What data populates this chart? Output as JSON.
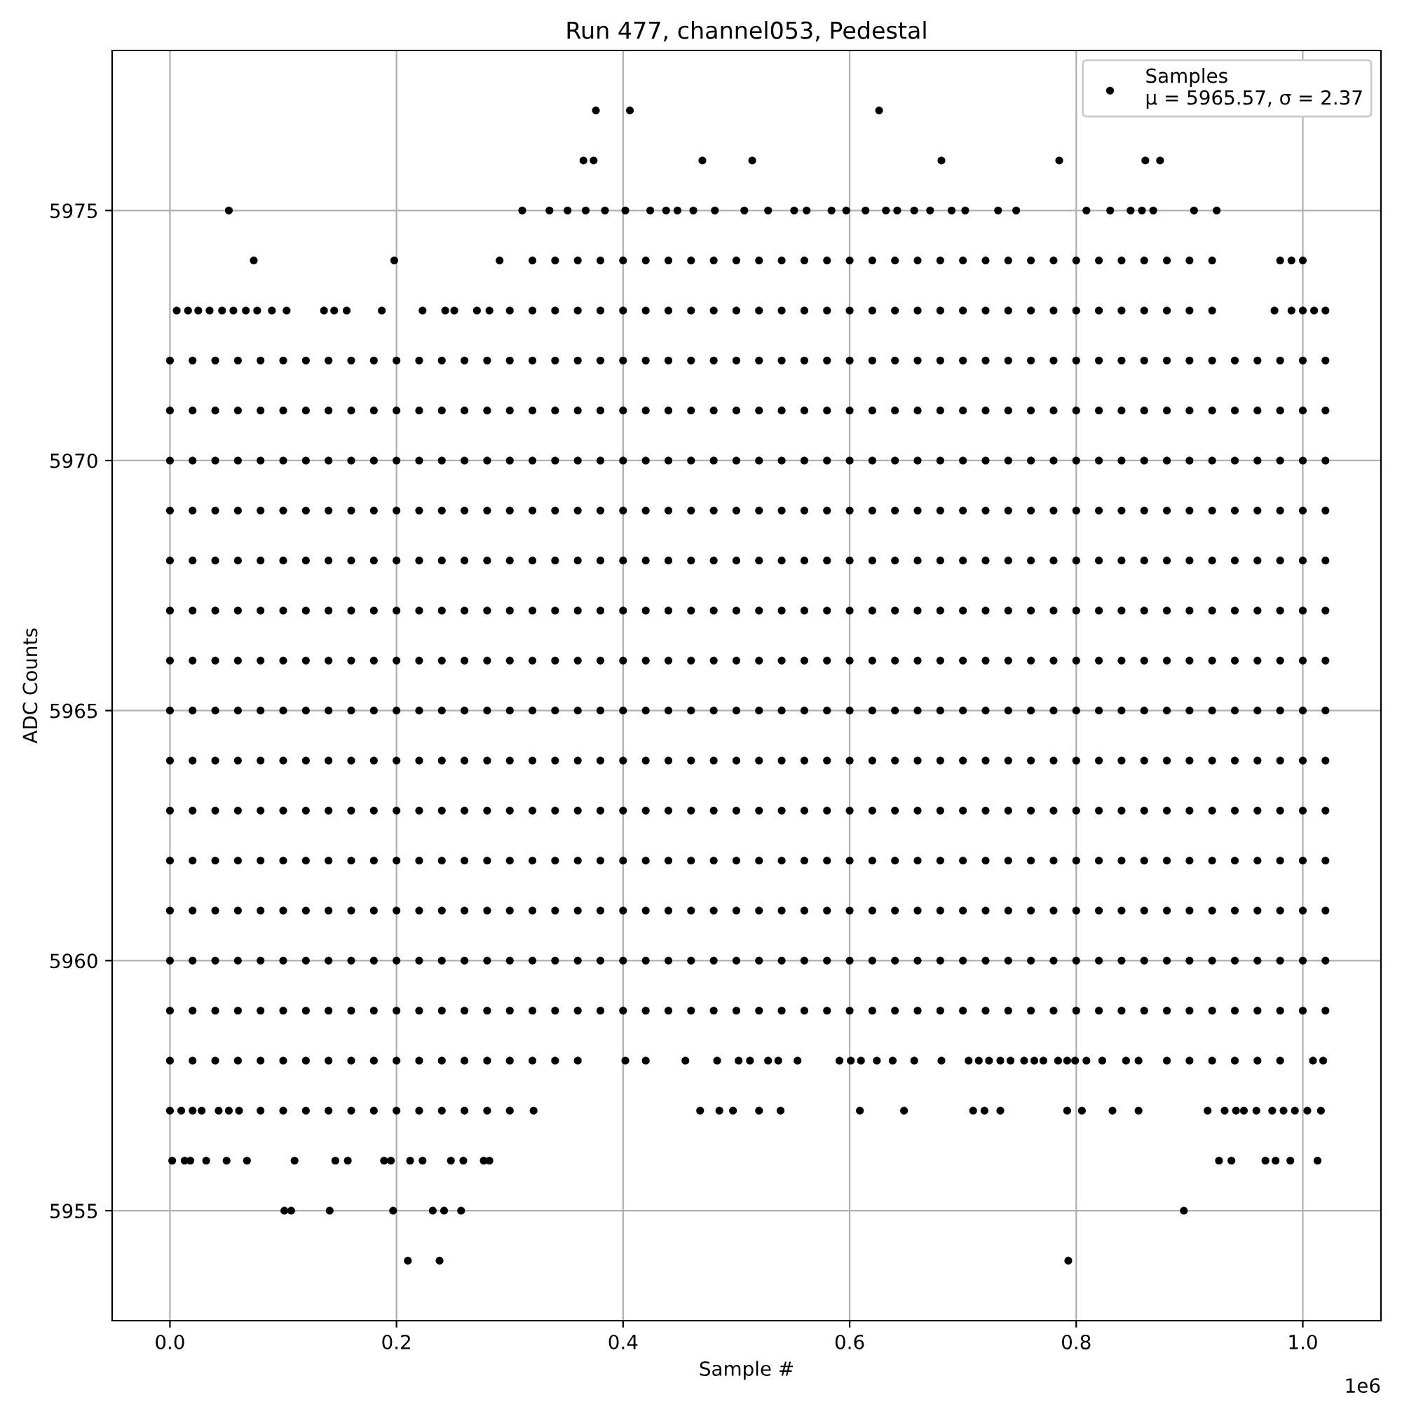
{
  "chart_data": {
    "type": "scatter",
    "title": "Run 477, channel053, Pedestal",
    "xlabel": "Sample #",
    "ylabel": "ADC Counts",
    "xlim": [
      -0.051,
      1.069
    ],
    "ylim": [
      5952.8,
      5978.2
    ],
    "xticks": [
      {
        "value": 0,
        "label": "0.0"
      },
      {
        "value": 0.2,
        "label": "0.2"
      },
      {
        "value": 0.4,
        "label": "0.4"
      },
      {
        "value": 0.6,
        "label": "0.6"
      },
      {
        "value": 0.8,
        "label": "0.8"
      },
      {
        "value": 1,
        "label": "1.0"
      }
    ],
    "yticks": [
      5955,
      5960,
      5965,
      5970,
      5975
    ],
    "annotations": [
      "1e6"
    ],
    "grid": true,
    "legend": "top right",
    "marker": "circle",
    "series": [
      {
        "name": "Samples\nμ = 5965.57, σ = 2.37",
        "color": "#000000",
        "x": [
          0.376,
          0.406,
          0.626
        ],
        "values": [
          5977,
          5977,
          5977
        ]
      },
      {
        "color": "#000000",
        "x": [
          0.365,
          0.374,
          0.47,
          0.514,
          0.681,
          0.785,
          0.861,
          0.874
        ],
        "values": [
          5976,
          5976,
          5976,
          5976,
          5976,
          5976,
          5976,
          5976
        ]
      },
      {
        "color": "#000000",
        "x": [
          0.052,
          0.311,
          0.335,
          0.351,
          0.367,
          0.384,
          0.402,
          0.424,
          0.438,
          0.448,
          0.462,
          0.481,
          0.507,
          0.528,
          0.551,
          0.562,
          0.584,
          0.597,
          0.614,
          0.632,
          0.642,
          0.657,
          0.671,
          0.69,
          0.702,
          0.731,
          0.747,
          0.809,
          0.83,
          0.848,
          0.858,
          0.868,
          0.904,
          0.924
        ],
        "values": [
          5975,
          5975,
          5975,
          5975,
          5975,
          5975,
          5975,
          5975,
          5975,
          5975,
          5975,
          5975,
          5975,
          5975,
          5975,
          5975,
          5975,
          5975,
          5975,
          5975,
          5975,
          5975,
          5975,
          5975,
          5975,
          5975,
          5975,
          5975,
          5975,
          5975,
          5975,
          5975,
          5975,
          5975
        ]
      },
      {
        "color": "#000000",
        "x": [
          0.074,
          0.198,
          0.291,
          0.32,
          0.34,
          0.36,
          0.38,
          0.4,
          0.42,
          0.44,
          0.46,
          0.48,
          0.5,
          0.52,
          0.54,
          0.56,
          0.58,
          0.6,
          0.62,
          0.64,
          0.66,
          0.68,
          0.7,
          0.72,
          0.74,
          0.76,
          0.78,
          0.8,
          0.82,
          0.84,
          0.86,
          0.88,
          0.9,
          0.92,
          0.98,
          0.99,
          1.0
        ],
        "values": [
          5974,
          5974,
          5974,
          5974,
          5974,
          5974,
          5974,
          5974,
          5974,
          5974,
          5974,
          5974,
          5974,
          5974,
          5974,
          5974,
          5974,
          5974,
          5974,
          5974,
          5974,
          5974,
          5974,
          5974,
          5974,
          5974,
          5974,
          5974,
          5974,
          5974,
          5974,
          5974,
          5974,
          5974,
          5974,
          5974,
          5974
        ]
      },
      {
        "color": "#000000",
        "x": [
          0.006,
          0.016,
          0.025,
          0.035,
          0.046,
          0.056,
          0.067,
          0.077,
          0.09,
          0.103,
          0.136,
          0.145,
          0.156,
          0.187,
          0.223,
          0.243,
          0.251,
          0.271,
          0.282,
          0.3,
          0.32,
          0.34,
          0.36,
          0.38,
          0.4,
          0.42,
          0.44,
          0.46,
          0.48,
          0.5,
          0.52,
          0.54,
          0.56,
          0.58,
          0.6,
          0.62,
          0.64,
          0.66,
          0.68,
          0.7,
          0.72,
          0.74,
          0.76,
          0.78,
          0.8,
          0.82,
          0.84,
          0.86,
          0.88,
          0.9,
          0.92,
          0.975,
          0.99,
          1.0,
          1.01,
          1.02
        ],
        "values": [
          5973,
          5973,
          5973,
          5973,
          5973,
          5973,
          5973,
          5973,
          5973,
          5973,
          5973,
          5973,
          5973,
          5973,
          5973,
          5973,
          5973,
          5973,
          5973,
          5973,
          5973,
          5973,
          5973,
          5973,
          5973,
          5973,
          5973,
          5973,
          5973,
          5973,
          5973,
          5973,
          5973,
          5973,
          5973,
          5973,
          5973,
          5973,
          5973,
          5973,
          5973,
          5973,
          5973,
          5973,
          5973,
          5973,
          5973,
          5973,
          5973,
          5973,
          5973,
          5973,
          5973,
          5973,
          5973,
          5973
        ]
      },
      {
        "color": "#000000",
        "x": [
          0,
          0.02,
          0.04,
          0.06,
          0.08,
          0.1,
          0.12,
          0.14,
          0.16,
          0.18,
          0.2,
          0.22,
          0.24,
          0.26,
          0.28,
          0.3,
          0.32,
          0.34,
          0.36,
          0.38,
          0.4,
          0.42,
          0.44,
          0.46,
          0.48,
          0.5,
          0.52,
          0.54,
          0.56,
          0.58,
          0.6,
          0.62,
          0.64,
          0.66,
          0.68,
          0.7,
          0.72,
          0.74,
          0.76,
          0.78,
          0.8,
          0.82,
          0.84,
          0.86,
          0.88,
          0.9,
          0.92,
          0.94,
          0.96,
          0.98,
          1.0,
          1.02
        ],
        "values": [
          5972,
          5972,
          5972,
          5972,
          5972,
          5972,
          5972,
          5972,
          5972,
          5972,
          5972,
          5972,
          5972,
          5972,
          5972,
          5972,
          5972,
          5972,
          5972,
          5972,
          5972,
          5972,
          5972,
          5972,
          5972,
          5972,
          5972,
          5972,
          5972,
          5972,
          5972,
          5972,
          5972,
          5972,
          5972,
          5972,
          5972,
          5972,
          5972,
          5972,
          5972,
          5972,
          5972,
          5972,
          5972,
          5972,
          5972,
          5972,
          5972,
          5972,
          5972,
          5972
        ]
      },
      {
        "color": "#000000",
        "x": [
          0,
          0.02,
          0.04,
          0.06,
          0.08,
          0.1,
          0.12,
          0.14,
          0.16,
          0.18,
          0.2,
          0.22,
          0.24,
          0.26,
          0.28,
          0.3,
          0.32,
          0.34,
          0.36,
          0.38,
          0.4,
          0.42,
          0.44,
          0.46,
          0.48,
          0.5,
          0.52,
          0.54,
          0.56,
          0.58,
          0.6,
          0.62,
          0.64,
          0.66,
          0.68,
          0.7,
          0.72,
          0.74,
          0.76,
          0.78,
          0.8,
          0.82,
          0.84,
          0.86,
          0.88,
          0.9,
          0.92,
          0.94,
          0.96,
          0.98,
          1.0,
          1.02
        ],
        "values": [
          5971,
          5971,
          5971,
          5971,
          5971,
          5971,
          5971,
          5971,
          5971,
          5971,
          5971,
          5971,
          5971,
          5971,
          5971,
          5971,
          5971,
          5971,
          5971,
          5971,
          5971,
          5971,
          5971,
          5971,
          5971,
          5971,
          5971,
          5971,
          5971,
          5971,
          5971,
          5971,
          5971,
          5971,
          5971,
          5971,
          5971,
          5971,
          5971,
          5971,
          5971,
          5971,
          5971,
          5971,
          5971,
          5971,
          5971,
          5971,
          5971,
          5971,
          5971,
          5971
        ]
      },
      {
        "color": "#000000",
        "x": [
          0,
          0.02,
          0.04,
          0.06,
          0.08,
          0.1,
          0.12,
          0.14,
          0.16,
          0.18,
          0.2,
          0.22,
          0.24,
          0.26,
          0.28,
          0.3,
          0.32,
          0.34,
          0.36,
          0.38,
          0.4,
          0.42,
          0.44,
          0.46,
          0.48,
          0.5,
          0.52,
          0.54,
          0.56,
          0.58,
          0.6,
          0.62,
          0.64,
          0.66,
          0.68,
          0.7,
          0.72,
          0.74,
          0.76,
          0.78,
          0.8,
          0.82,
          0.84,
          0.86,
          0.88,
          0.9,
          0.92,
          0.94,
          0.96,
          0.98,
          1.0,
          1.02
        ],
        "values": [
          5970,
          5970,
          5970,
          5970,
          5970,
          5970,
          5970,
          5970,
          5970,
          5970,
          5970,
          5970,
          5970,
          5970,
          5970,
          5970,
          5970,
          5970,
          5970,
          5970,
          5970,
          5970,
          5970,
          5970,
          5970,
          5970,
          5970,
          5970,
          5970,
          5970,
          5970,
          5970,
          5970,
          5970,
          5970,
          5970,
          5970,
          5970,
          5970,
          5970,
          5970,
          5970,
          5970,
          5970,
          5970,
          5970,
          5970,
          5970,
          5970,
          5970,
          5970,
          5970
        ]
      },
      {
        "color": "#000000",
        "x": [
          0,
          0.02,
          0.04,
          0.06,
          0.08,
          0.1,
          0.12,
          0.14,
          0.16,
          0.18,
          0.2,
          0.22,
          0.24,
          0.26,
          0.28,
          0.3,
          0.32,
          0.34,
          0.36,
          0.38,
          0.4,
          0.42,
          0.44,
          0.46,
          0.48,
          0.5,
          0.52,
          0.54,
          0.56,
          0.58,
          0.6,
          0.62,
          0.64,
          0.66,
          0.68,
          0.7,
          0.72,
          0.74,
          0.76,
          0.78,
          0.8,
          0.82,
          0.84,
          0.86,
          0.88,
          0.9,
          0.92,
          0.94,
          0.96,
          0.98,
          1.0,
          1.02
        ],
        "values": [
          5969,
          5969,
          5969,
          5969,
          5969,
          5969,
          5969,
          5969,
          5969,
          5969,
          5969,
          5969,
          5969,
          5969,
          5969,
          5969,
          5969,
          5969,
          5969,
          5969,
          5969,
          5969,
          5969,
          5969,
          5969,
          5969,
          5969,
          5969,
          5969,
          5969,
          5969,
          5969,
          5969,
          5969,
          5969,
          5969,
          5969,
          5969,
          5969,
          5969,
          5969,
          5969,
          5969,
          5969,
          5969,
          5969,
          5969,
          5969,
          5969,
          5969,
          5969,
          5969
        ]
      },
      {
        "color": "#000000",
        "x": [
          0,
          0.02,
          0.04,
          0.06,
          0.08,
          0.1,
          0.12,
          0.14,
          0.16,
          0.18,
          0.2,
          0.22,
          0.24,
          0.26,
          0.28,
          0.3,
          0.32,
          0.34,
          0.36,
          0.38,
          0.4,
          0.42,
          0.44,
          0.46,
          0.48,
          0.5,
          0.52,
          0.54,
          0.56,
          0.58,
          0.6,
          0.62,
          0.64,
          0.66,
          0.68,
          0.7,
          0.72,
          0.74,
          0.76,
          0.78,
          0.8,
          0.82,
          0.84,
          0.86,
          0.88,
          0.9,
          0.92,
          0.94,
          0.96,
          0.98,
          1.0,
          1.02
        ],
        "values": [
          5968,
          5968,
          5968,
          5968,
          5968,
          5968,
          5968,
          5968,
          5968,
          5968,
          5968,
          5968,
          5968,
          5968,
          5968,
          5968,
          5968,
          5968,
          5968,
          5968,
          5968,
          5968,
          5968,
          5968,
          5968,
          5968,
          5968,
          5968,
          5968,
          5968,
          5968,
          5968,
          5968,
          5968,
          5968,
          5968,
          5968,
          5968,
          5968,
          5968,
          5968,
          5968,
          5968,
          5968,
          5968,
          5968,
          5968,
          5968,
          5968,
          5968,
          5968,
          5968
        ]
      },
      {
        "color": "#000000",
        "x": [
          0,
          0.02,
          0.04,
          0.06,
          0.08,
          0.1,
          0.12,
          0.14,
          0.16,
          0.18,
          0.2,
          0.22,
          0.24,
          0.26,
          0.28,
          0.3,
          0.32,
          0.34,
          0.36,
          0.38,
          0.4,
          0.42,
          0.44,
          0.46,
          0.48,
          0.5,
          0.52,
          0.54,
          0.56,
          0.58,
          0.6,
          0.62,
          0.64,
          0.66,
          0.68,
          0.7,
          0.72,
          0.74,
          0.76,
          0.78,
          0.8,
          0.82,
          0.84,
          0.86,
          0.88,
          0.9,
          0.92,
          0.94,
          0.96,
          0.98,
          1.0,
          1.02
        ],
        "values": [
          5967,
          5967,
          5967,
          5967,
          5967,
          5967,
          5967,
          5967,
          5967,
          5967,
          5967,
          5967,
          5967,
          5967,
          5967,
          5967,
          5967,
          5967,
          5967,
          5967,
          5967,
          5967,
          5967,
          5967,
          5967,
          5967,
          5967,
          5967,
          5967,
          5967,
          5967,
          5967,
          5967,
          5967,
          5967,
          5967,
          5967,
          5967,
          5967,
          5967,
          5967,
          5967,
          5967,
          5967,
          5967,
          5967,
          5967,
          5967,
          5967,
          5967,
          5967,
          5967
        ]
      },
      {
        "color": "#000000",
        "x": [
          0,
          0.02,
          0.04,
          0.06,
          0.08,
          0.1,
          0.12,
          0.14,
          0.16,
          0.18,
          0.2,
          0.22,
          0.24,
          0.26,
          0.28,
          0.3,
          0.32,
          0.34,
          0.36,
          0.38,
          0.4,
          0.42,
          0.44,
          0.46,
          0.48,
          0.5,
          0.52,
          0.54,
          0.56,
          0.58,
          0.6,
          0.62,
          0.64,
          0.66,
          0.68,
          0.7,
          0.72,
          0.74,
          0.76,
          0.78,
          0.8,
          0.82,
          0.84,
          0.86,
          0.88,
          0.9,
          0.92,
          0.94,
          0.96,
          0.98,
          1.0,
          1.02
        ],
        "values": [
          5966,
          5966,
          5966,
          5966,
          5966,
          5966,
          5966,
          5966,
          5966,
          5966,
          5966,
          5966,
          5966,
          5966,
          5966,
          5966,
          5966,
          5966,
          5966,
          5966,
          5966,
          5966,
          5966,
          5966,
          5966,
          5966,
          5966,
          5966,
          5966,
          5966,
          5966,
          5966,
          5966,
          5966,
          5966,
          5966,
          5966,
          5966,
          5966,
          5966,
          5966,
          5966,
          5966,
          5966,
          5966,
          5966,
          5966,
          5966,
          5966,
          5966,
          5966,
          5966
        ]
      },
      {
        "color": "#000000",
        "x": [
          0,
          0.02,
          0.04,
          0.06,
          0.08,
          0.1,
          0.12,
          0.14,
          0.16,
          0.18,
          0.2,
          0.22,
          0.24,
          0.26,
          0.28,
          0.3,
          0.32,
          0.34,
          0.36,
          0.38,
          0.4,
          0.42,
          0.44,
          0.46,
          0.48,
          0.5,
          0.52,
          0.54,
          0.56,
          0.58,
          0.6,
          0.62,
          0.64,
          0.66,
          0.68,
          0.7,
          0.72,
          0.74,
          0.76,
          0.78,
          0.8,
          0.82,
          0.84,
          0.86,
          0.88,
          0.9,
          0.92,
          0.94,
          0.96,
          0.98,
          1.0,
          1.02
        ],
        "values": [
          5965,
          5965,
          5965,
          5965,
          5965,
          5965,
          5965,
          5965,
          5965,
          5965,
          5965,
          5965,
          5965,
          5965,
          5965,
          5965,
          5965,
          5965,
          5965,
          5965,
          5965,
          5965,
          5965,
          5965,
          5965,
          5965,
          5965,
          5965,
          5965,
          5965,
          5965,
          5965,
          5965,
          5965,
          5965,
          5965,
          5965,
          5965,
          5965,
          5965,
          5965,
          5965,
          5965,
          5965,
          5965,
          5965,
          5965,
          5965,
          5965,
          5965,
          5965,
          5965
        ]
      },
      {
        "color": "#000000",
        "x": [
          0,
          0.02,
          0.04,
          0.06,
          0.08,
          0.1,
          0.12,
          0.14,
          0.16,
          0.18,
          0.2,
          0.22,
          0.24,
          0.26,
          0.28,
          0.3,
          0.32,
          0.34,
          0.36,
          0.38,
          0.4,
          0.42,
          0.44,
          0.46,
          0.48,
          0.5,
          0.52,
          0.54,
          0.56,
          0.58,
          0.6,
          0.62,
          0.64,
          0.66,
          0.68,
          0.7,
          0.72,
          0.74,
          0.76,
          0.78,
          0.8,
          0.82,
          0.84,
          0.86,
          0.88,
          0.9,
          0.92,
          0.94,
          0.96,
          0.98,
          1.0,
          1.02
        ],
        "values": [
          5964,
          5964,
          5964,
          5964,
          5964,
          5964,
          5964,
          5964,
          5964,
          5964,
          5964,
          5964,
          5964,
          5964,
          5964,
          5964,
          5964,
          5964,
          5964,
          5964,
          5964,
          5964,
          5964,
          5964,
          5964,
          5964,
          5964,
          5964,
          5964,
          5964,
          5964,
          5964,
          5964,
          5964,
          5964,
          5964,
          5964,
          5964,
          5964,
          5964,
          5964,
          5964,
          5964,
          5964,
          5964,
          5964,
          5964,
          5964,
          5964,
          5964,
          5964,
          5964
        ]
      },
      {
        "color": "#000000",
        "x": [
          0,
          0.02,
          0.04,
          0.06,
          0.08,
          0.1,
          0.12,
          0.14,
          0.16,
          0.18,
          0.2,
          0.22,
          0.24,
          0.26,
          0.28,
          0.3,
          0.32,
          0.34,
          0.36,
          0.38,
          0.4,
          0.42,
          0.44,
          0.46,
          0.48,
          0.5,
          0.52,
          0.54,
          0.56,
          0.58,
          0.6,
          0.62,
          0.64,
          0.66,
          0.68,
          0.7,
          0.72,
          0.74,
          0.76,
          0.78,
          0.8,
          0.82,
          0.84,
          0.86,
          0.88,
          0.9,
          0.92,
          0.94,
          0.96,
          0.98,
          1.0,
          1.02
        ],
        "values": [
          5963,
          5963,
          5963,
          5963,
          5963,
          5963,
          5963,
          5963,
          5963,
          5963,
          5963,
          5963,
          5963,
          5963,
          5963,
          5963,
          5963,
          5963,
          5963,
          5963,
          5963,
          5963,
          5963,
          5963,
          5963,
          5963,
          5963,
          5963,
          5963,
          5963,
          5963,
          5963,
          5963,
          5963,
          5963,
          5963,
          5963,
          5963,
          5963,
          5963,
          5963,
          5963,
          5963,
          5963,
          5963,
          5963,
          5963,
          5963,
          5963,
          5963,
          5963,
          5963
        ]
      },
      {
        "color": "#000000",
        "x": [
          0,
          0.02,
          0.04,
          0.06,
          0.08,
          0.1,
          0.12,
          0.14,
          0.16,
          0.18,
          0.2,
          0.22,
          0.24,
          0.26,
          0.28,
          0.3,
          0.32,
          0.34,
          0.36,
          0.38,
          0.4,
          0.42,
          0.44,
          0.46,
          0.48,
          0.5,
          0.52,
          0.54,
          0.56,
          0.58,
          0.6,
          0.62,
          0.64,
          0.66,
          0.68,
          0.7,
          0.72,
          0.74,
          0.76,
          0.78,
          0.8,
          0.82,
          0.84,
          0.86,
          0.88,
          0.9,
          0.92,
          0.94,
          0.96,
          0.98,
          1.0,
          1.02
        ],
        "values": [
          5962,
          5962,
          5962,
          5962,
          5962,
          5962,
          5962,
          5962,
          5962,
          5962,
          5962,
          5962,
          5962,
          5962,
          5962,
          5962,
          5962,
          5962,
          5962,
          5962,
          5962,
          5962,
          5962,
          5962,
          5962,
          5962,
          5962,
          5962,
          5962,
          5962,
          5962,
          5962,
          5962,
          5962,
          5962,
          5962,
          5962,
          5962,
          5962,
          5962,
          5962,
          5962,
          5962,
          5962,
          5962,
          5962,
          5962,
          5962,
          5962,
          5962,
          5962,
          5962
        ]
      },
      {
        "color": "#000000",
        "x": [
          0,
          0.02,
          0.04,
          0.06,
          0.08,
          0.1,
          0.12,
          0.14,
          0.16,
          0.18,
          0.2,
          0.22,
          0.24,
          0.26,
          0.28,
          0.3,
          0.32,
          0.34,
          0.36,
          0.38,
          0.4,
          0.42,
          0.44,
          0.46,
          0.48,
          0.5,
          0.52,
          0.54,
          0.56,
          0.58,
          0.6,
          0.62,
          0.64,
          0.66,
          0.68,
          0.7,
          0.72,
          0.74,
          0.76,
          0.78,
          0.8,
          0.82,
          0.84,
          0.86,
          0.88,
          0.9,
          0.92,
          0.94,
          0.96,
          0.98,
          1.0,
          1.02
        ],
        "values": [
          5961,
          5961,
          5961,
          5961,
          5961,
          5961,
          5961,
          5961,
          5961,
          5961,
          5961,
          5961,
          5961,
          5961,
          5961,
          5961,
          5961,
          5961,
          5961,
          5961,
          5961,
          5961,
          5961,
          5961,
          5961,
          5961,
          5961,
          5961,
          5961,
          5961,
          5961,
          5961,
          5961,
          5961,
          5961,
          5961,
          5961,
          5961,
          5961,
          5961,
          5961,
          5961,
          5961,
          5961,
          5961,
          5961,
          5961,
          5961,
          5961,
          5961,
          5961,
          5961
        ]
      },
      {
        "color": "#000000",
        "x": [
          0,
          0.02,
          0.04,
          0.06,
          0.08,
          0.1,
          0.12,
          0.14,
          0.16,
          0.18,
          0.2,
          0.22,
          0.24,
          0.26,
          0.28,
          0.3,
          0.32,
          0.34,
          0.36,
          0.38,
          0.4,
          0.42,
          0.44,
          0.46,
          0.48,
          0.5,
          0.52,
          0.54,
          0.56,
          0.58,
          0.6,
          0.62,
          0.64,
          0.66,
          0.68,
          0.7,
          0.72,
          0.74,
          0.76,
          0.78,
          0.8,
          0.82,
          0.84,
          0.86,
          0.88,
          0.9,
          0.92,
          0.94,
          0.96,
          0.98,
          1.0,
          1.02
        ],
        "values": [
          5960,
          5960,
          5960,
          5960,
          5960,
          5960,
          5960,
          5960,
          5960,
          5960,
          5960,
          5960,
          5960,
          5960,
          5960,
          5960,
          5960,
          5960,
          5960,
          5960,
          5960,
          5960,
          5960,
          5960,
          5960,
          5960,
          5960,
          5960,
          5960,
          5960,
          5960,
          5960,
          5960,
          5960,
          5960,
          5960,
          5960,
          5960,
          5960,
          5960,
          5960,
          5960,
          5960,
          5960,
          5960,
          5960,
          5960,
          5960,
          5960,
          5960,
          5960,
          5960
        ]
      },
      {
        "color": "#000000",
        "x": [
          0,
          0.02,
          0.04,
          0.06,
          0.08,
          0.1,
          0.12,
          0.14,
          0.16,
          0.18,
          0.2,
          0.22,
          0.24,
          0.26,
          0.28,
          0.3,
          0.32,
          0.34,
          0.36,
          0.38,
          0.4,
          0.42,
          0.44,
          0.46,
          0.48,
          0.5,
          0.52,
          0.54,
          0.56,
          0.58,
          0.6,
          0.62,
          0.64,
          0.66,
          0.68,
          0.7,
          0.72,
          0.74,
          0.76,
          0.78,
          0.8,
          0.82,
          0.84,
          0.86,
          0.88,
          0.9,
          0.92,
          0.94,
          0.96,
          0.98,
          1.0,
          1.02
        ],
        "values": [
          5959,
          5959,
          5959,
          5959,
          5959,
          5959,
          5959,
          5959,
          5959,
          5959,
          5959,
          5959,
          5959,
          5959,
          5959,
          5959,
          5959,
          5959,
          5959,
          5959,
          5959,
          5959,
          5959,
          5959,
          5959,
          5959,
          5959,
          5959,
          5959,
          5959,
          5959,
          5959,
          5959,
          5959,
          5959,
          5959,
          5959,
          5959,
          5959,
          5959,
          5959,
          5959,
          5959,
          5959,
          5959,
          5959,
          5959,
          5959,
          5959,
          5959,
          5959,
          5959
        ]
      },
      {
        "color": "#000000",
        "x": [
          0,
          0.02,
          0.04,
          0.06,
          0.08,
          0.1,
          0.12,
          0.14,
          0.16,
          0.18,
          0.2,
          0.22,
          0.24,
          0.26,
          0.28,
          0.3,
          0.32,
          0.34,
          0.36,
          0.402,
          0.42,
          0.455,
          0.483,
          0.502,
          0.512,
          0.528,
          0.537,
          0.554,
          0.591,
          0.601,
          0.61,
          0.624,
          0.638,
          0.657,
          0.681,
          0.705,
          0.714,
          0.723,
          0.733,
          0.742,
          0.754,
          0.763,
          0.771,
          0.784,
          0.792,
          0.799,
          0.809,
          0.823,
          0.844,
          0.855,
          0.88,
          0.9,
          0.92,
          0.94,
          0.96,
          0.98,
          1.009,
          1.018
        ],
        "values": [
          5958,
          5958,
          5958,
          5958,
          5958,
          5958,
          5958,
          5958,
          5958,
          5958,
          5958,
          5958,
          5958,
          5958,
          5958,
          5958,
          5958,
          5958,
          5958,
          5958,
          5958,
          5958,
          5958,
          5958,
          5958,
          5958,
          5958,
          5958,
          5958,
          5958,
          5958,
          5958,
          5958,
          5958,
          5958,
          5958,
          5958,
          5958,
          5958,
          5958,
          5958,
          5958,
          5958,
          5958,
          5958,
          5958,
          5958,
          5958,
          5958,
          5958,
          5958,
          5958,
          5958,
          5958,
          5958,
          5958,
          5958,
          5958
        ]
      },
      {
        "color": "#000000",
        "x": [
          0,
          0.01,
          0.02,
          0.028,
          0.043,
          0.052,
          0.061,
          0.08,
          0.1,
          0.12,
          0.14,
          0.16,
          0.18,
          0.2,
          0.22,
          0.24,
          0.26,
          0.28,
          0.3,
          0.321,
          0.468,
          0.485,
          0.497,
          0.52,
          0.539,
          0.609,
          0.648,
          0.709,
          0.719,
          0.733,
          0.792,
          0.805,
          0.832,
          0.855,
          0.916,
          0.931,
          0.941,
          0.948,
          0.959,
          0.973,
          0.983,
          0.993,
          1.004,
          1.016
        ],
        "values": [
          5957,
          5957,
          5957,
          5957,
          5957,
          5957,
          5957,
          5957,
          5957,
          5957,
          5957,
          5957,
          5957,
          5957,
          5957,
          5957,
          5957,
          5957,
          5957,
          5957,
          5957,
          5957,
          5957,
          5957,
          5957,
          5957,
          5957,
          5957,
          5957,
          5957,
          5957,
          5957,
          5957,
          5957,
          5957,
          5957,
          5957,
          5957,
          5957,
          5957,
          5957,
          5957,
          5957,
          5957
        ]
      },
      {
        "color": "#000000",
        "x": [
          0.002,
          0.013,
          0.018,
          0.032,
          0.05,
          0.068,
          0.11,
          0.146,
          0.157,
          0.189,
          0.195,
          0.212,
          0.223,
          0.248,
          0.259,
          0.277,
          0.282,
          0.926,
          0.937,
          0.967,
          0.976,
          0.989,
          1.013
        ],
        "values": [
          5956,
          5956,
          5956,
          5956,
          5956,
          5956,
          5956,
          5956,
          5956,
          5956,
          5956,
          5956,
          5956,
          5956,
          5956,
          5956,
          5956,
          5956,
          5956,
          5956,
          5956,
          5956,
          5956
        ]
      },
      {
        "color": "#000000",
        "x": [
          0.101,
          0.107,
          0.141,
          0.197,
          0.232,
          0.242,
          0.257,
          0.895
        ],
        "values": [
          5955,
          5955,
          5955,
          5955,
          5955,
          5955,
          5955,
          5955
        ]
      },
      {
        "color": "#000000",
        "x": [
          0.21,
          0.238,
          0.793
        ],
        "values": [
          5954,
          5954,
          5954
        ]
      }
    ]
  }
}
